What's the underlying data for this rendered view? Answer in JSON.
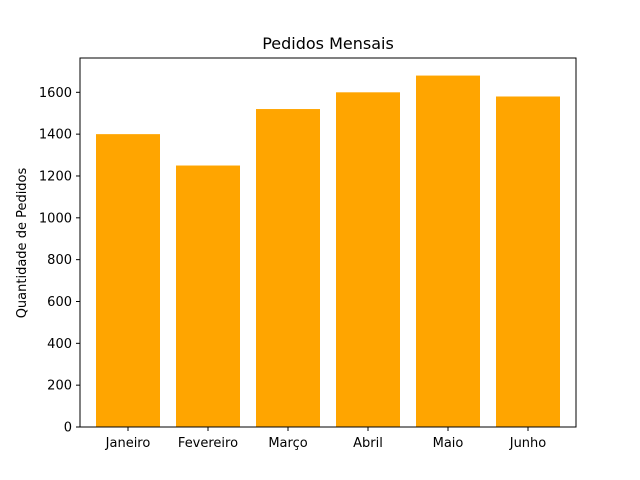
{
  "colors": {
    "bar": "#FFA500",
    "axis": "#000000",
    "background": "#FFFFFF"
  },
  "chart_data": {
    "type": "bar",
    "title": "Pedidos Mensais",
    "xlabel": "",
    "ylabel": "Quantidade de Pedidos",
    "categories": [
      "Janeiro",
      "Fevereiro",
      "Março",
      "Abril",
      "Maio",
      "Junho"
    ],
    "values": [
      1400,
      1250,
      1520,
      1600,
      1680,
      1580
    ],
    "ylim": [
      0,
      1764
    ],
    "yticks": [
      0,
      200,
      400,
      600,
      800,
      1000,
      1200,
      1400,
      1600
    ],
    "grid": false,
    "legend": "none"
  }
}
